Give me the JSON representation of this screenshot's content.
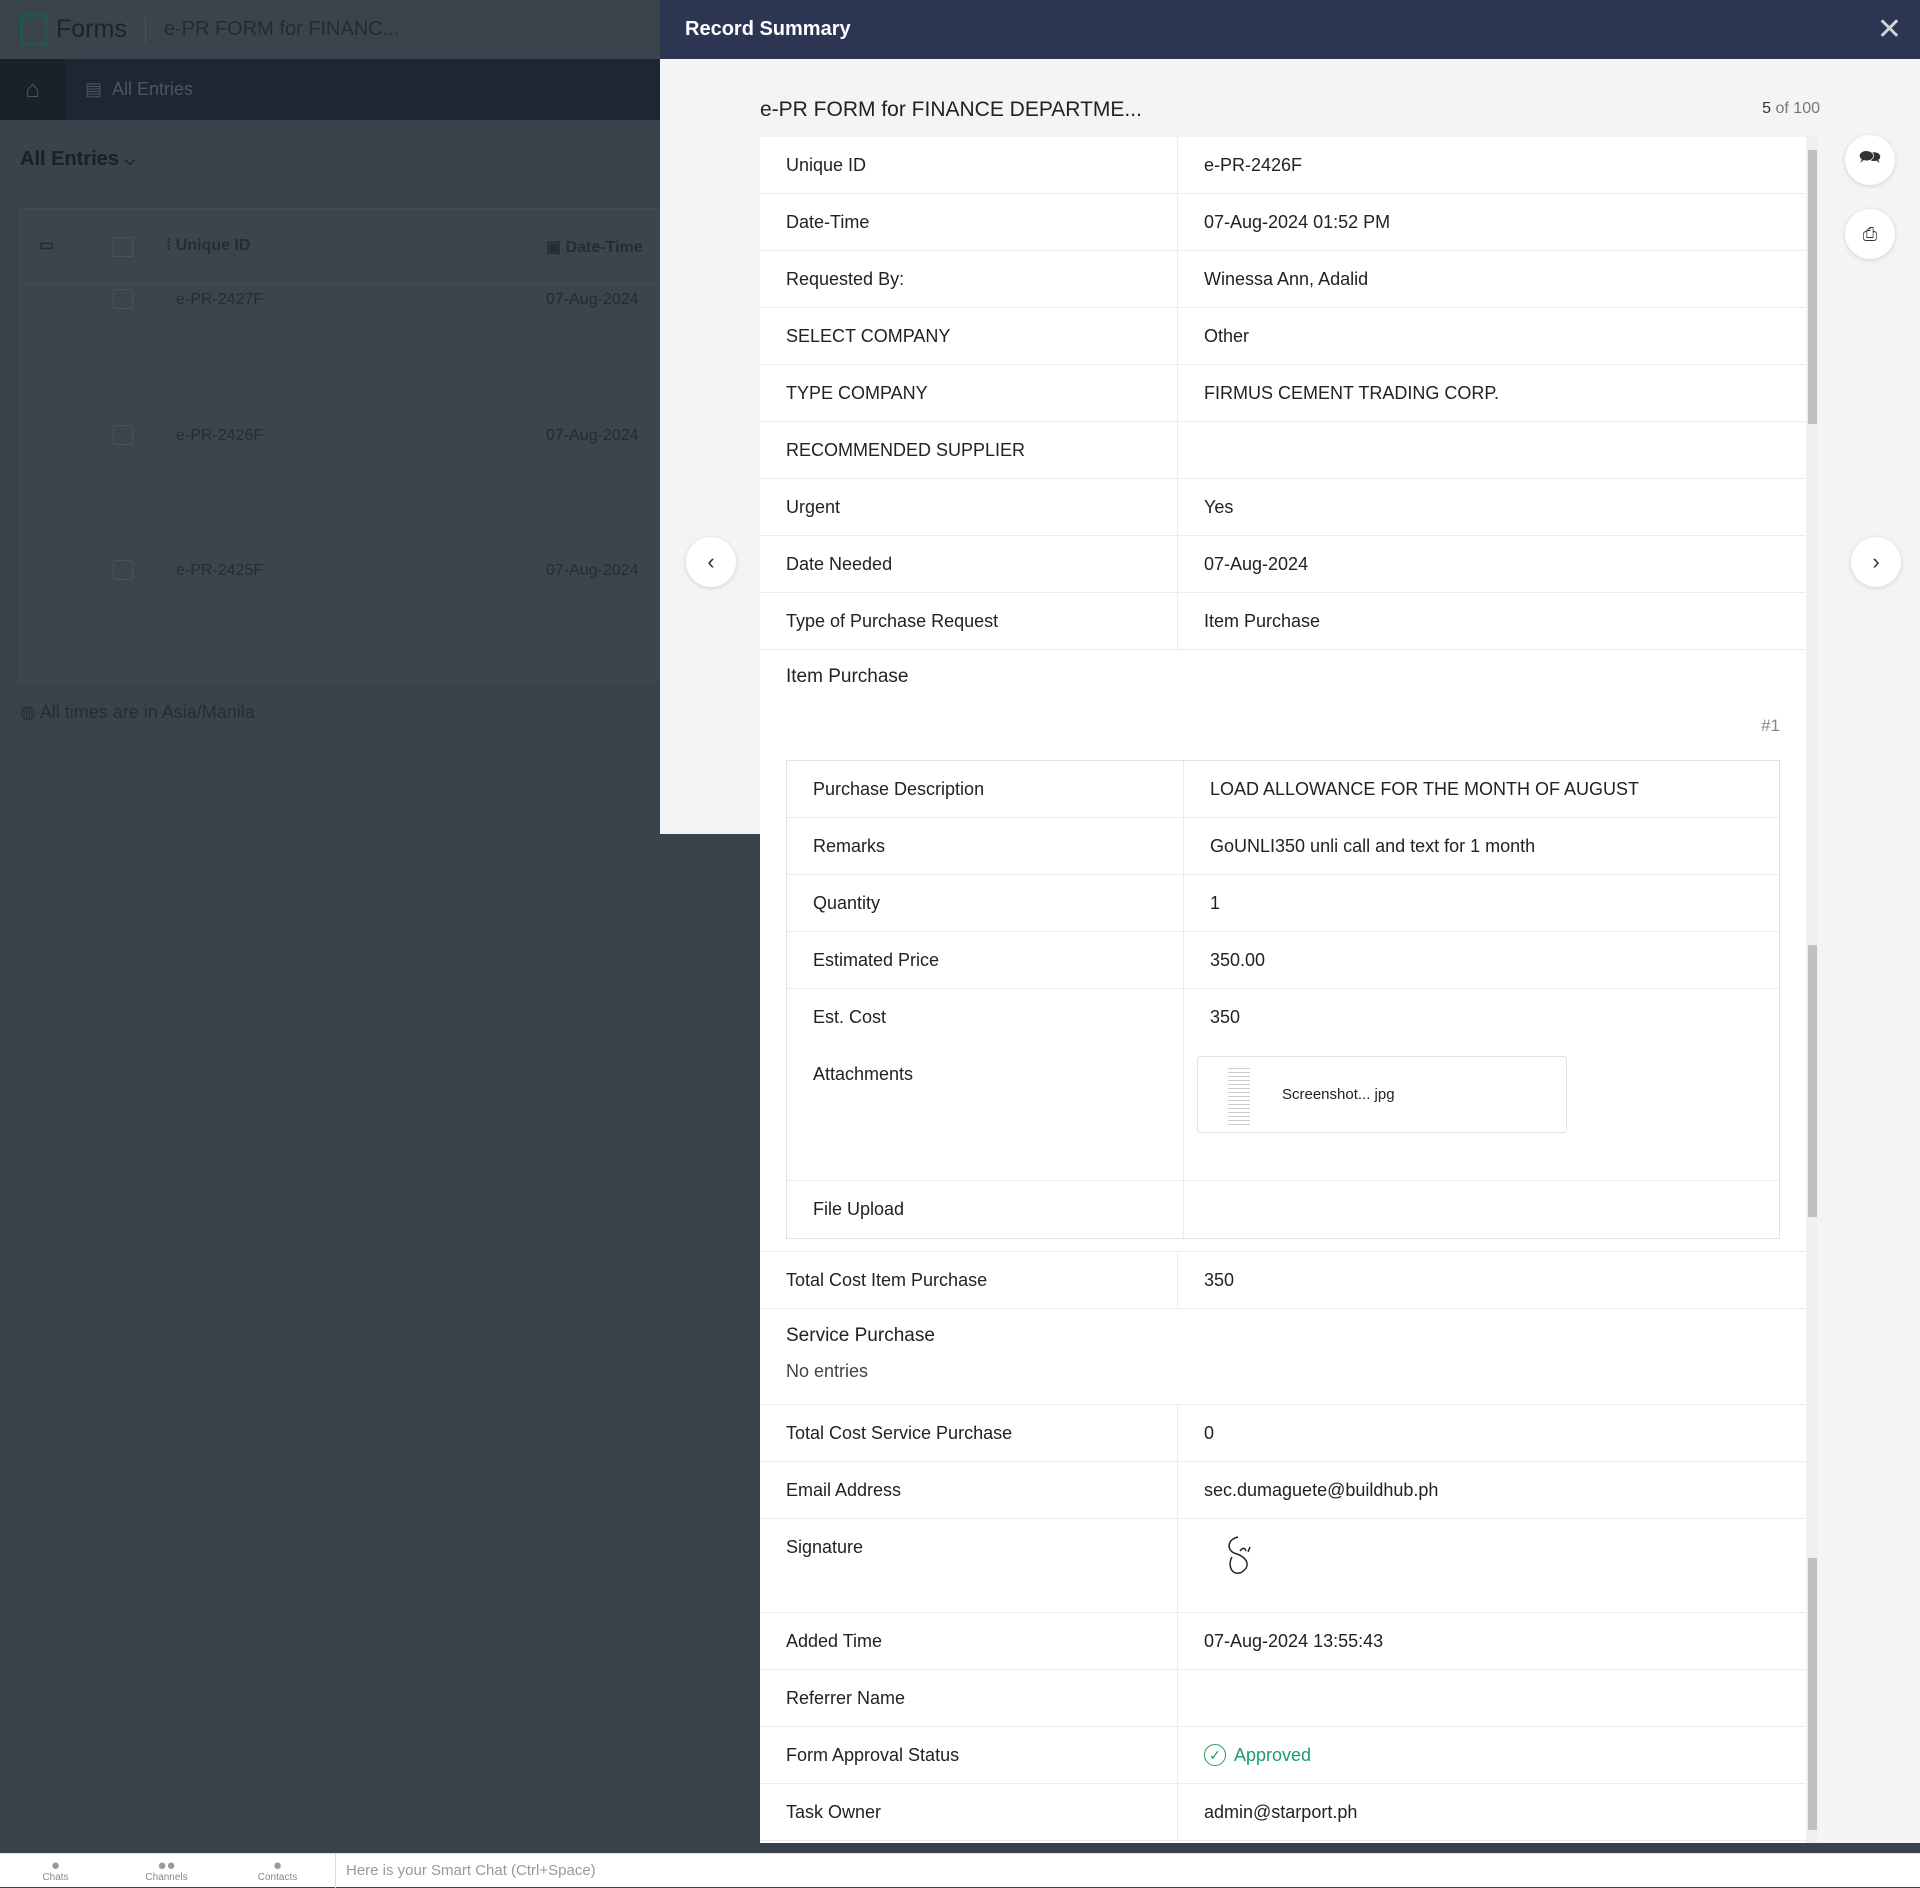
{
  "app": {
    "name": "Forms",
    "form_name": "e-PR FORM for FINANC...",
    "nav_tab": "All Entries",
    "entries_heading": "All Entries",
    "timezone_note": "All times are in Asia/Manila",
    "table": {
      "headers": [
        "Unique ID",
        "Date-Time"
      ],
      "rows": [
        {
          "id": "e-PR-2427F",
          "date": "07-Aug-2024"
        },
        {
          "id": "e-PR-2426F",
          "date": "07-Aug-2024"
        },
        {
          "id": "e-PR-2425F",
          "date": "07-Aug-2024"
        }
      ]
    }
  },
  "panel": {
    "title": "Record Summary",
    "record_title": "e-PR FORM for FINANCE DEPARTME...",
    "counter_current": "5",
    "counter_rest": "of 100",
    "fields": [
      {
        "label": "Unique ID",
        "value": "e-PR-2426F"
      },
      {
        "label": "Date-Time",
        "value": "07-Aug-2024 01:52 PM"
      },
      {
        "label": "Requested By:",
        "value": "Winessa Ann, Adalid"
      },
      {
        "label": "SELECT COMPANY",
        "value": "Other"
      },
      {
        "label": "TYPE COMPANY",
        "value": "FIRMUS CEMENT TRADING CORP."
      },
      {
        "label": "RECOMMENDED SUPPLIER",
        "value": ""
      },
      {
        "label": "Urgent",
        "value": "Yes"
      },
      {
        "label": "Date Needed",
        "value": "07-Aug-2024"
      },
      {
        "label": "Type of Purchase Request",
        "value": "Item Purchase"
      }
    ],
    "item_purchase": {
      "heading": "Item Purchase",
      "index": "#1",
      "rows": [
        {
          "label": "Purchase Description",
          "value": "LOAD ALLOWANCE FOR THE MONTH OF AUGUST"
        },
        {
          "label": "Remarks",
          "value": "GoUNLI350 unli call and text for 1 month"
        },
        {
          "label": "Quantity",
          "value": "1"
        },
        {
          "label": "Estimated Price",
          "value": "350.00"
        },
        {
          "label": "Est. Cost",
          "value": "350"
        }
      ],
      "attachments_label": "Attachments",
      "attachment_name": "Screenshot... jpg",
      "file_upload_label": "File Upload"
    },
    "total_item": {
      "label": "Total Cost Item Purchase",
      "value": "350"
    },
    "service_purchase": {
      "heading": "Service Purchase",
      "empty": "No entries"
    },
    "fields2": [
      {
        "label": "Total Cost Service Purchase",
        "value": "0"
      },
      {
        "label": "Email Address",
        "value": "sec.dumaguete@buildhub.ph"
      }
    ],
    "signature_label": "Signature",
    "fields3": [
      {
        "label": "Added Time",
        "value": "07-Aug-2024 13:55:43"
      },
      {
        "label": "Referrer Name",
        "value": ""
      }
    ],
    "approval": {
      "label": "Form Approval Status",
      "value": "Approved",
      "color": "#1f9a68"
    },
    "task_owner": {
      "label": "Task Owner",
      "value": "admin@starport.ph"
    }
  },
  "chatbar": {
    "items": [
      "Chats",
      "Channels",
      "Contacts"
    ],
    "placeholder": "Here is your Smart Chat (Ctrl+Space)"
  }
}
